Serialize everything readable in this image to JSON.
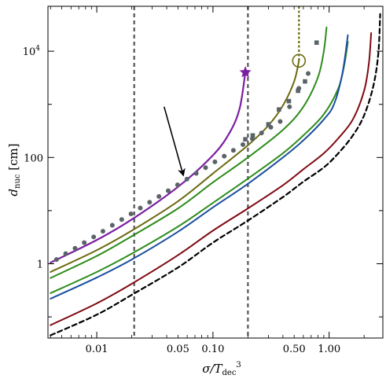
{
  "chart_data": {
    "type": "line",
    "xlabel": "σ/T_dec^3",
    "ylabel": "d_nuc [cm]",
    "xscale": "log",
    "yscale": "log",
    "xlim": [
      0.0038,
      2.9
    ],
    "ylim": [
      0.04,
      70000
    ],
    "grid": false,
    "legend": "none",
    "x_ticks": [
      {
        "value": 0.01,
        "label": "0.01"
      },
      {
        "value": 0.05,
        "label": "0.05"
      },
      {
        "value": 0.1,
        "label": "0.10"
      },
      {
        "value": 0.5,
        "label": "0.50"
      },
      {
        "value": 1.0,
        "label": "1.00"
      }
    ],
    "y_ticks": [
      {
        "value": 1,
        "label": "1"
      },
      {
        "value": 100,
        "label": "100"
      },
      {
        "value": 10000,
        "label": "10^4"
      }
    ],
    "vertical_lines": [
      {
        "x": 0.021,
        "color": "#555555",
        "style": "dashed"
      },
      {
        "x": 0.2,
        "color": "#555555",
        "style": "dashed"
      },
      {
        "x": 0.55,
        "color": "#6b6a10",
        "style": "dotted",
        "from_y": 6500
      }
    ],
    "series": [
      {
        "color": "#7b1fa2",
        "width": 2.2,
        "dash": "",
        "x": [
          0.004,
          0.01,
          0.02,
          0.05,
          0.1,
          0.14,
          0.17,
          0.19
        ],
        "y": [
          1.05,
          2.8,
          6.8,
          28,
          110,
          300,
          850,
          4000
        ],
        "end_marker": "star"
      },
      {
        "color": "#6b6a10",
        "width": 2,
        "dash": "",
        "x": [
          0.004,
          0.01,
          0.02,
          0.05,
          0.1,
          0.2,
          0.3,
          0.4,
          0.5,
          0.55
        ],
        "y": [
          0.7,
          1.8,
          4.2,
          15,
          50,
          170,
          400,
          950,
          2700,
          6600
        ],
        "end_marker": "circle"
      },
      {
        "color": "#2e8b1a",
        "width": 2,
        "dash": "",
        "x": [
          0.004,
          0.01,
          0.02,
          0.05,
          0.1,
          0.2,
          0.4,
          0.6,
          0.8,
          0.9,
          0.95
        ],
        "y": [
          0.54,
          1.4,
          3.3,
          11,
          34,
          100,
          330,
          900,
          3200,
          10000,
          28000
        ]
      },
      {
        "color": "#2f8d1d",
        "width": 2,
        "dash": "",
        "x": [
          0.004,
          0.01,
          0.02,
          0.05,
          0.1,
          0.2,
          0.4,
          0.6,
          0.9,
          1.2,
          1.35,
          1.45
        ],
        "y": [
          0.28,
          0.7,
          1.55,
          5,
          14,
          40,
          120,
          260,
          650,
          2000,
          5500,
          15000
        ]
      },
      {
        "color": "#1b4f9e",
        "width": 2,
        "dash": "",
        "x": [
          0.004,
          0.01,
          0.02,
          0.05,
          0.1,
          0.2,
          0.4,
          0.6,
          0.9,
          1.1,
          1.3,
          1.45
        ],
        "y": [
          0.22,
          0.55,
          1.2,
          4,
          11.5,
          32,
          100,
          210,
          520,
          1000,
          3800,
          20000
        ]
      },
      {
        "color": "#7f0a12",
        "width": 2,
        "dash": "",
        "x": [
          0.004,
          0.01,
          0.02,
          0.05,
          0.1,
          0.2,
          0.4,
          0.6,
          0.9,
          1.2,
          1.6,
          2.0,
          2.2,
          2.3
        ],
        "y": [
          0.07,
          0.18,
          0.42,
          1.45,
          4.2,
          11,
          30,
          60,
          120,
          230,
          520,
          1800,
          6000,
          22000
        ]
      },
      {
        "color": "#000000",
        "width": 2.2,
        "dash": "6 4",
        "x": [
          0.004,
          0.01,
          0.02,
          0.05,
          0.1,
          0.2,
          0.4,
          0.6,
          0.9,
          1.2,
          1.6,
          2.0,
          2.4,
          2.65,
          2.75
        ],
        "y": [
          0.045,
          0.11,
          0.26,
          0.85,
          2.5,
          6.5,
          18,
          35,
          65,
          120,
          260,
          620,
          2200,
          9000,
          50000
        ]
      },
      {
        "color": "#5a6368",
        "marker": "circle",
        "line": false,
        "x": [
          0.0045,
          0.0054,
          0.0065,
          0.0078,
          0.0094,
          0.0113,
          0.0136,
          0.0164,
          0.0197,
          0.0237,
          0.0285,
          0.0343,
          0.0412,
          0.0496,
          0.0597,
          0.0718,
          0.0864,
          0.104,
          0.125,
          0.15,
          0.181,
          0.218,
          0.262,
          0.315,
          0.379,
          0.456,
          0.549,
          0.66
        ],
        "y": [
          1.2,
          1.55,
          1.95,
          2.5,
          3.2,
          4.1,
          5.3,
          6.8,
          8.7,
          11.2,
          14.4,
          18.5,
          23.7,
          30.5,
          39.1,
          50.2,
          64.4,
          82.7,
          106,
          136,
          175,
          225,
          289,
          371,
          477,
          900,
          2000,
          3800
        ]
      },
      {
        "color": "#5a6368",
        "marker": "square",
        "line": false,
        "x": [
          0.19,
          0.22,
          0.3,
          0.37,
          0.45,
          0.54,
          0.62,
          0.78
        ],
        "y": [
          220,
          260,
          420,
          800,
          1150,
          1800,
          2700,
          14500
        ]
      }
    ],
    "annotations": [
      {
        "type": "arrow",
        "from": [
          0.038,
          900
        ],
        "to": [
          0.055,
          50
        ],
        "color": "#000000"
      }
    ]
  }
}
